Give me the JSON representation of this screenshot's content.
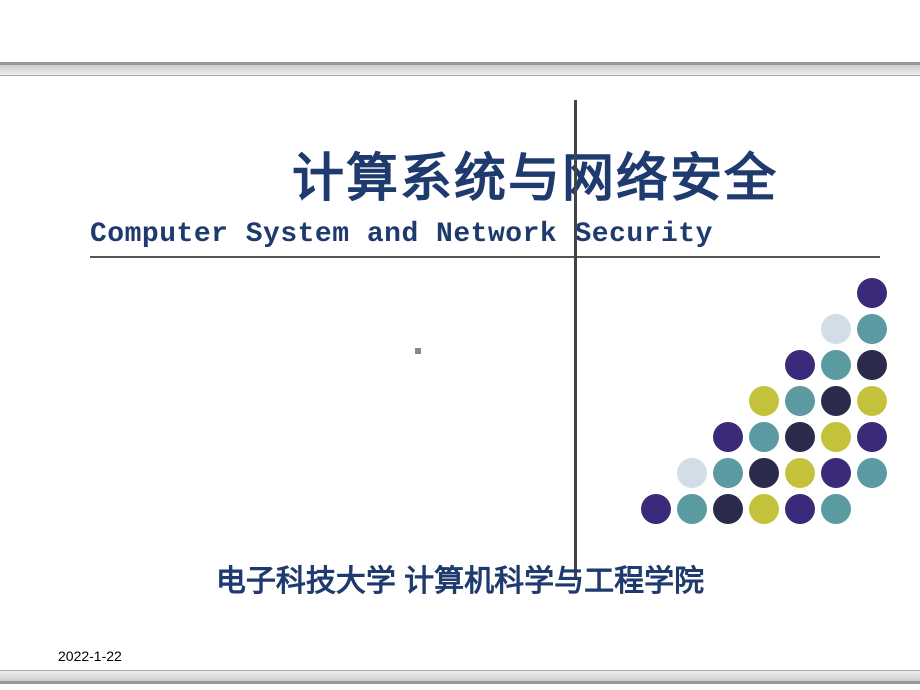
{
  "title": {
    "chinese": "计算系统与网络安全",
    "english": "Computer System and Network Security"
  },
  "affiliation": "电子科技大学 计算机科学与工程学院",
  "date": "2022-1-22",
  "colors": {
    "title": "#1f3a6e",
    "background": "#ffffff"
  },
  "dot_grid": {
    "rows": 7,
    "cols": 8,
    "dot_size": 30,
    "cell_size": 34,
    "palette": {
      "P": "#3b2a7a",
      "L": "#d3dde6",
      "T": "#5a9aa0",
      "D": "#2a2a4a",
      "Y": "#c4c23a",
      "_": "transparent"
    },
    "layout": [
      [
        "_",
        "_",
        "_",
        "_",
        "_",
        "_",
        "_",
        "P"
      ],
      [
        "_",
        "_",
        "_",
        "_",
        "_",
        "_",
        "L",
        "T"
      ],
      [
        "_",
        "_",
        "_",
        "_",
        "_",
        "P",
        "T",
        "D"
      ],
      [
        "_",
        "_",
        "_",
        "_",
        "Y",
        "T",
        "D",
        "Y"
      ],
      [
        "_",
        "_",
        "_",
        "P",
        "T",
        "D",
        "Y",
        "P"
      ],
      [
        "_",
        "_",
        "L",
        "T",
        "D",
        "Y",
        "P",
        "T"
      ],
      [
        "_",
        "P",
        "T",
        "D",
        "Y",
        "P",
        "T",
        "_"
      ]
    ]
  }
}
